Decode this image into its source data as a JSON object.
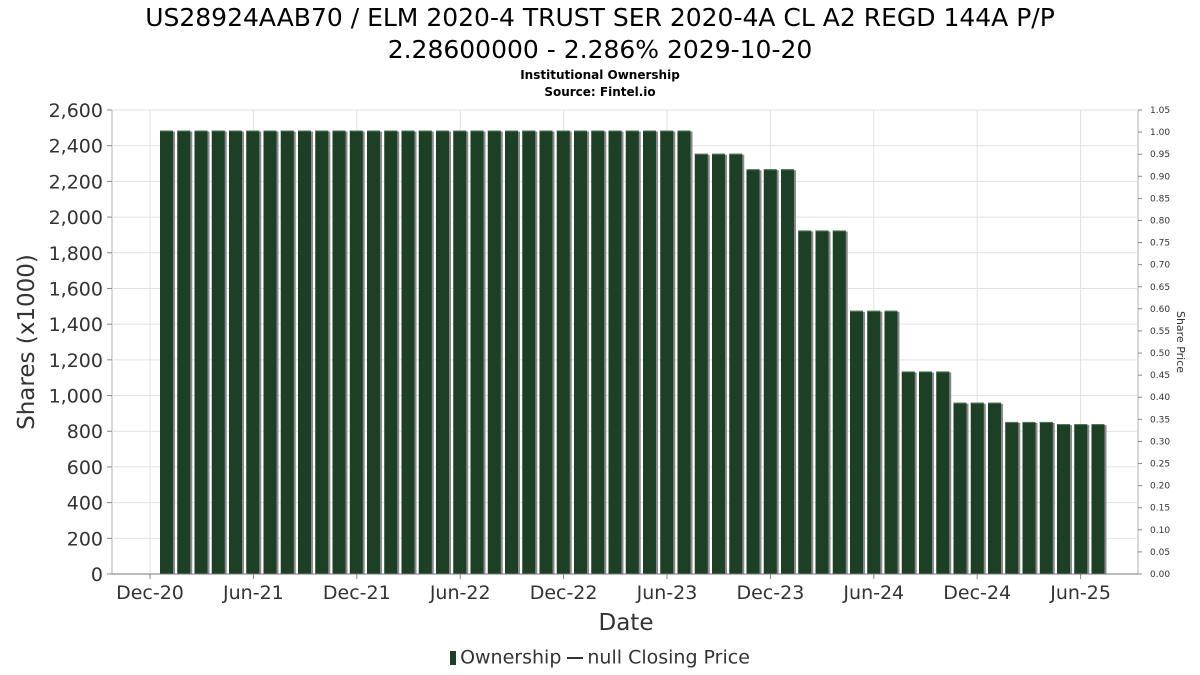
{
  "title_line1": "US28924AAB70 / ELM 2020-4 TRUST SER 2020-4A CL A2 REGD 144A P/P",
  "title_line2": "2.28600000 - 2.286% 2029-10-20",
  "subtitle1": "Institutional Ownership",
  "subtitle2": "Source: Fintel.io",
  "legend": {
    "ownership": "Ownership",
    "price": "null Closing Price"
  },
  "colors": {
    "bar": "#1c3f25",
    "bar_shadow": "#8a8a8a",
    "grid": "#e2e2e2"
  },
  "chart_data": {
    "type": "bar",
    "xlabel": "Date",
    "ylabel": "Shares (x1000)",
    "y2label": "Share Price",
    "ylim": [
      0,
      2600
    ],
    "y2lim": [
      0,
      1.05
    ],
    "yticks": [
      "0",
      "200",
      "400",
      "600",
      "800",
      "1,000",
      "1,200",
      "1,400",
      "1,600",
      "1,800",
      "2,000",
      "2,200",
      "2,400",
      "2,600"
    ],
    "y2ticks": [
      "0.00",
      "0.05",
      "0.10",
      "0.15",
      "0.20",
      "0.25",
      "0.30",
      "0.35",
      "0.40",
      "0.45",
      "0.50",
      "0.55",
      "0.60",
      "0.65",
      "0.70",
      "0.75",
      "0.80",
      "0.85",
      "0.90",
      "0.95",
      "1.00",
      "1.05"
    ],
    "xticks": [
      "Dec-20",
      "Jun-21",
      "Dec-21",
      "Jun-22",
      "Dec-22",
      "Jun-23",
      "Dec-23",
      "Jun-24",
      "Dec-24",
      "Jun-25"
    ],
    "grid": true,
    "legend_position": "bottom",
    "series": [
      {
        "name": "Ownership",
        "values": [
          2485,
          2485,
          2485,
          2485,
          2485,
          2485,
          2485,
          2485,
          2485,
          2485,
          2485,
          2485,
          2485,
          2485,
          2485,
          2485,
          2485,
          2485,
          2485,
          2485,
          2485,
          2485,
          2485,
          2485,
          2485,
          2485,
          2485,
          2485,
          2485,
          2485,
          2485,
          2355,
          2355,
          2355,
          2268,
          2268,
          2268,
          1925,
          1925,
          1925,
          1475,
          1475,
          1475,
          1135,
          1135,
          1135,
          960,
          960,
          960,
          852,
          852,
          852,
          840,
          840,
          840
        ]
      }
    ]
  }
}
